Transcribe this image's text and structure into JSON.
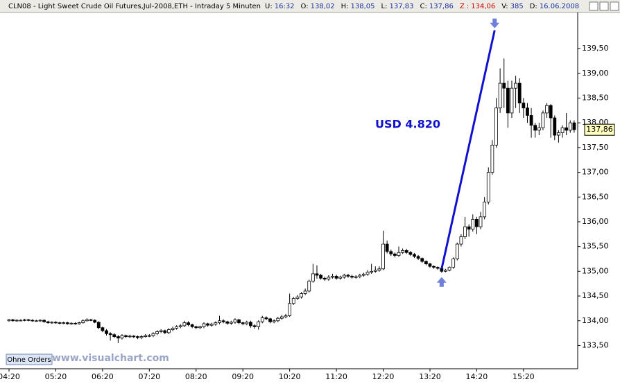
{
  "header": {
    "title": "CLN08 - Light Sweet Crude Oil Futures,Jul-2008,ETH - Intraday 5 Minuten",
    "fields": [
      {
        "label": "U:",
        "value": "16:32"
      },
      {
        "label": "O:",
        "value": "138,02"
      },
      {
        "label": "H:",
        "value": "138,05"
      },
      {
        "label": "L:",
        "value": "137,83"
      },
      {
        "label": "C:",
        "value": "137,86"
      },
      {
        "label": "Z :",
        "value": "134,06"
      },
      {
        "label": "V:",
        "value": "385"
      },
      {
        "label": "D:",
        "value": "16.06.2008"
      }
    ]
  },
  "button": "Ohne Orders",
  "watermark": "www.visualchart.com",
  "chart_data": {
    "type": "candlestick",
    "up_color": "#ffffff",
    "down_color": "#000000",
    "line_color": "#000000",
    "categories": [
      "04:20",
      null,
      null,
      null,
      null,
      null,
      null,
      null,
      null,
      null,
      null,
      null,
      "05:20",
      null,
      null,
      null,
      null,
      null,
      null,
      null,
      null,
      null,
      null,
      null,
      "06:20",
      null,
      null,
      null,
      null,
      null,
      null,
      null,
      null,
      null,
      null,
      null,
      "07:20",
      null,
      null,
      null,
      null,
      null,
      null,
      null,
      null,
      null,
      null,
      null,
      "08:20",
      null,
      null,
      null,
      null,
      null,
      null,
      null,
      null,
      null,
      null,
      null,
      "09:20",
      null,
      null,
      null,
      null,
      null,
      null,
      null,
      null,
      null,
      null,
      null,
      "10:20",
      null,
      null,
      null,
      null,
      null,
      null,
      null,
      null,
      null,
      null,
      null,
      "11:20",
      null,
      null,
      null,
      null,
      null,
      null,
      null,
      null,
      null,
      null,
      null,
      "12:20",
      null,
      null,
      null,
      null,
      null,
      null,
      null,
      null,
      null,
      null,
      null,
      "13:20",
      null,
      null,
      null,
      null,
      null,
      null,
      null,
      null,
      null,
      null,
      null,
      "14:20",
      null,
      null,
      null,
      null,
      null,
      null,
      null,
      null,
      null,
      null,
      null,
      "15:20",
      null,
      null,
      null,
      null,
      null,
      null,
      null,
      null,
      null,
      null,
      null,
      null,
      null
    ],
    "open": [
      134.0,
      134.02,
      134.0,
      134.01,
      134.01,
      134.02,
      134.01,
      134.0,
      134.0,
      134.01,
      133.98,
      133.96,
      133.97,
      133.96,
      133.95,
      133.96,
      133.94,
      133.95,
      133.94,
      133.96,
      134.0,
      134.02,
      134.01,
      133.97,
      133.86,
      133.8,
      133.74,
      133.72,
      133.68,
      133.65,
      133.7,
      133.68,
      133.69,
      133.68,
      133.66,
      133.68,
      133.7,
      133.7,
      133.74,
      133.78,
      133.8,
      133.76,
      133.82,
      133.85,
      133.88,
      133.9,
      133.96,
      133.92,
      133.88,
      133.86,
      133.88,
      133.94,
      133.91,
      133.93,
      133.96,
      134.0,
      133.98,
      133.95,
      133.97,
      134.02,
      133.96,
      133.94,
      133.97,
      133.9,
      133.88,
      133.98,
      134.06,
      134.04,
      133.98,
      134.0,
      134.05,
      134.08,
      134.1,
      134.35,
      134.45,
      134.48,
      134.55,
      134.6,
      134.8,
      134.95,
      134.92,
      134.86,
      134.84,
      134.88,
      134.9,
      134.86,
      134.88,
      134.92,
      134.9,
      134.88,
      134.89,
      134.92,
      134.94,
      134.98,
      135.0,
      135.02,
      135.05,
      135.55,
      135.4,
      135.35,
      135.32,
      135.38,
      135.42,
      135.38,
      135.34,
      135.3,
      135.26,
      135.2,
      135.15,
      135.1,
      135.08,
      135.06,
      135.0,
      135.02,
      135.08,
      135.25,
      135.55,
      135.7,
      135.9,
      135.85,
      136.05,
      135.9,
      136.1,
      136.4,
      137.0,
      137.55,
      138.3,
      138.8,
      138.7,
      138.2,
      138.7,
      138.8,
      138.4,
      138.3,
      138.15,
      137.95,
      137.85,
      137.9,
      138.2,
      138.35,
      138.1,
      137.75,
      137.8,
      137.9,
      137.85,
      138.0
    ],
    "high": [
      134.04,
      134.04,
      134.03,
      134.03,
      134.04,
      134.04,
      134.03,
      134.02,
      134.03,
      134.03,
      134.0,
      133.99,
      133.99,
      133.98,
      133.98,
      133.98,
      133.97,
      133.97,
      133.98,
      134.03,
      134.05,
      134.04,
      134.03,
      133.99,
      133.88,
      133.83,
      133.77,
      133.75,
      133.71,
      133.73,
      133.72,
      133.72,
      133.71,
      133.7,
      133.71,
      133.73,
      133.73,
      133.77,
      133.81,
      133.83,
      133.82,
      133.85,
      133.88,
      133.91,
      133.93,
      134.0,
      133.99,
      133.94,
      133.9,
      133.9,
      133.97,
      133.96,
      133.96,
      133.99,
      134.1,
      134.03,
      134.0,
      134.0,
      134.05,
      134.04,
      133.98,
      134.0,
      134.0,
      133.93,
      134.01,
      134.1,
      134.09,
      134.06,
      134.03,
      134.08,
      134.12,
      134.14,
      134.55,
      134.48,
      134.52,
      134.58,
      134.65,
      134.83,
      135.15,
      135.12,
      134.95,
      134.89,
      134.92,
      134.95,
      134.93,
      134.91,
      134.95,
      134.95,
      134.93,
      134.92,
      134.95,
      134.97,
      135.02,
      135.15,
      135.1,
      135.1,
      135.82,
      135.62,
      135.44,
      135.38,
      135.5,
      135.46,
      135.45,
      135.41,
      135.37,
      135.33,
      135.28,
      135.22,
      135.17,
      135.12,
      135.1,
      135.08,
      135.05,
      135.1,
      135.28,
      135.58,
      135.75,
      136.1,
      135.95,
      136.15,
      136.1,
      136.2,
      136.5,
      137.1,
      137.65,
      138.5,
      139.1,
      139.3,
      138.85,
      138.85,
      138.95,
      138.9,
      138.5,
      138.4,
      138.3,
      138.0,
      138.0,
      138.25,
      138.4,
      138.38,
      138.15,
      137.85,
      137.95,
      138.2,
      138.05,
      138.05
    ],
    "low": [
      133.98,
      133.98,
      133.98,
      133.99,
      133.99,
      133.99,
      133.98,
      133.98,
      133.98,
      133.96,
      133.94,
      133.94,
      133.94,
      133.93,
      133.93,
      133.92,
      133.92,
      133.92,
      133.92,
      133.94,
      133.98,
      133.99,
      133.95,
      133.83,
      133.77,
      133.7,
      133.6,
      133.65,
      133.55,
      133.62,
      133.65,
      133.65,
      133.65,
      133.63,
      133.63,
      133.66,
      133.67,
      133.67,
      133.71,
      133.75,
      133.73,
      133.73,
      133.79,
      133.82,
      133.85,
      133.87,
      133.89,
      133.85,
      133.83,
      133.83,
      133.85,
      133.88,
      133.88,
      133.9,
      133.93,
      133.95,
      133.92,
      133.92,
      133.94,
      133.93,
      133.91,
      133.91,
      133.86,
      133.84,
      133.82,
      133.95,
      134.01,
      133.95,
      133.95,
      133.97,
      134.02,
      134.05,
      134.08,
      134.32,
      134.42,
      134.45,
      134.52,
      134.57,
      134.77,
      134.85,
      134.83,
      134.81,
      134.81,
      134.85,
      134.83,
      134.83,
      134.85,
      134.87,
      134.85,
      134.85,
      134.86,
      134.89,
      134.91,
      134.95,
      134.97,
      134.99,
      135.02,
      135.36,
      135.31,
      135.28,
      135.29,
      135.35,
      135.35,
      135.31,
      135.27,
      135.23,
      135.17,
      135.12,
      135.07,
      135.05,
      135.03,
      134.97,
      134.98,
      135.0,
      135.05,
      135.22,
      135.5,
      135.65,
      135.7,
      135.8,
      135.75,
      135.85,
      136.05,
      136.35,
      136.95,
      137.5,
      138.2,
      138.3,
      137.9,
      138.1,
      138.3,
      138.2,
      138.1,
      138.0,
      137.7,
      137.7,
      137.75,
      137.85,
      138.1,
      137.7,
      137.65,
      137.6,
      137.7,
      137.75,
      137.8,
      137.8
    ],
    "close": [
      134.02,
      134.0,
      134.01,
      134.01,
      134.02,
      134.01,
      134.0,
      134.0,
      134.01,
      133.98,
      133.96,
      133.97,
      133.96,
      133.95,
      133.96,
      133.94,
      133.95,
      133.94,
      133.96,
      134.0,
      134.02,
      134.01,
      133.97,
      133.86,
      133.8,
      133.74,
      133.72,
      133.68,
      133.65,
      133.7,
      133.68,
      133.69,
      133.68,
      133.66,
      133.68,
      133.7,
      133.7,
      133.74,
      133.78,
      133.8,
      133.76,
      133.82,
      133.85,
      133.88,
      133.9,
      133.96,
      133.92,
      133.88,
      133.86,
      133.88,
      133.94,
      133.91,
      133.93,
      133.96,
      134.0,
      133.98,
      133.95,
      133.97,
      134.02,
      133.96,
      133.94,
      133.97,
      133.9,
      133.88,
      133.98,
      134.06,
      134.04,
      133.98,
      134.0,
      134.05,
      134.08,
      134.1,
      134.35,
      134.45,
      134.48,
      134.55,
      134.6,
      134.8,
      134.95,
      134.92,
      134.86,
      134.84,
      134.88,
      134.9,
      134.86,
      134.88,
      134.92,
      134.9,
      134.88,
      134.89,
      134.92,
      134.94,
      134.98,
      135.0,
      135.02,
      135.05,
      135.55,
      135.4,
      135.35,
      135.32,
      135.38,
      135.42,
      135.38,
      135.34,
      135.3,
      135.26,
      135.2,
      135.15,
      135.1,
      135.08,
      135.06,
      135.0,
      135.02,
      135.08,
      135.25,
      135.55,
      135.7,
      135.9,
      135.85,
      136.05,
      135.9,
      136.1,
      136.4,
      137.0,
      137.55,
      138.3,
      138.8,
      138.7,
      138.2,
      138.7,
      138.8,
      138.4,
      138.3,
      138.15,
      137.95,
      137.85,
      137.9,
      138.2,
      138.35,
      138.1,
      137.75,
      137.8,
      137.9,
      137.85,
      138.0,
      137.86
    ],
    "ylim": [
      133.03,
      140.23
    ],
    "yticks": [
      {
        "value": 133.5,
        "label": "133,50"
      },
      {
        "value": 134,
        "label": "134,00"
      },
      {
        "value": 134.5,
        "label": "134,50"
      },
      {
        "value": 135,
        "label": "135,00"
      },
      {
        "value": 135.5,
        "label": "135,50"
      },
      {
        "value": 136,
        "label": "136,00"
      },
      {
        "value": 136.5,
        "label": "136,50"
      },
      {
        "value": 137,
        "label": "137,00"
      },
      {
        "value": 137.5,
        "label": "137,50"
      },
      {
        "value": 138,
        "label": "138,00"
      },
      {
        "value": 138.5,
        "label": "138,50"
      },
      {
        "value": 139,
        "label": "139,00"
      },
      {
        "value": 139.5,
        "label": "139,50"
      }
    ],
    "last_price": {
      "value": 137.86,
      "label": "137,86"
    },
    "trend_line": {
      "label": "USD 4.820",
      "color": "#1010d0",
      "x": [
        111,
        124.6
      ],
      "y": [
        135.05,
        139.87
      ]
    },
    "grid": false
  }
}
